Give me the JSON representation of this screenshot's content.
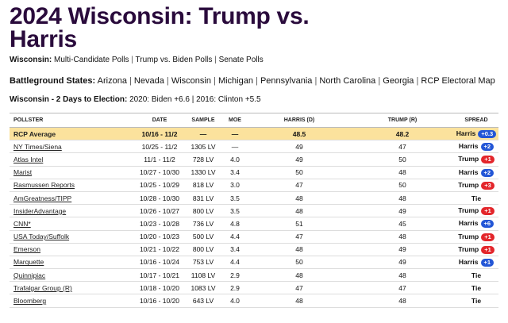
{
  "header": {
    "title": "2024 Wisconsin: Trump vs. Harris"
  },
  "nav": {
    "label": "Wisconsin:",
    "links": [
      "Multi-Candidate Polls",
      "Trump vs. Biden Polls",
      "Senate Polls"
    ]
  },
  "battleground": {
    "label": "Battleground States:",
    "links": [
      "Arizona",
      "Nevada",
      "Wisconsin",
      "Michigan",
      "Pennsylvania",
      "North Carolina",
      "Georgia",
      "RCP Electoral Map"
    ]
  },
  "history": {
    "label": "Wisconsin - 2 Days to Election:",
    "text": "2020: Biden +6.6 | 2016: Clinton +5.5"
  },
  "spread_colors": {
    "Harris": "#2356d6",
    "Trump": "#e3262b"
  },
  "table": {
    "columns": [
      "POLLSTER",
      "DATE",
      "SAMPLE",
      "MOE",
      "HARRIS (D)",
      "TRUMP (R)",
      "SPREAD"
    ],
    "rows": [
      {
        "pollster": "RCP Average",
        "date": "10/16 - 11/2",
        "sample": "—",
        "moe": "—",
        "harris": "48.5",
        "trump": "48.2",
        "leader": "Harris",
        "margin": "+0.3"
      },
      {
        "pollster": "NY Times/Siena",
        "date": "10/25 - 11/2",
        "sample": "1305 LV",
        "moe": "—",
        "harris": "49",
        "trump": "47",
        "leader": "Harris",
        "margin": "+2"
      },
      {
        "pollster": "Atlas Intel",
        "date": "11/1 - 11/2",
        "sample": "728 LV",
        "moe": "4.0",
        "harris": "49",
        "trump": "50",
        "leader": "Trump",
        "margin": "+1"
      },
      {
        "pollster": "Marist",
        "date": "10/27 - 10/30",
        "sample": "1330 LV",
        "moe": "3.4",
        "harris": "50",
        "trump": "48",
        "leader": "Harris",
        "margin": "+2"
      },
      {
        "pollster": "Rasmussen Reports",
        "date": "10/25 - 10/29",
        "sample": "818 LV",
        "moe": "3.0",
        "harris": "47",
        "trump": "50",
        "leader": "Trump",
        "margin": "+3"
      },
      {
        "pollster": "AmGreatness/TIPP",
        "date": "10/28 - 10/30",
        "sample": "831 LV",
        "moe": "3.5",
        "harris": "48",
        "trump": "48",
        "leader": "Tie"
      },
      {
        "pollster": "InsiderAdvantage",
        "date": "10/26 - 10/27",
        "sample": "800 LV",
        "moe": "3.5",
        "harris": "48",
        "trump": "49",
        "leader": "Trump",
        "margin": "+1"
      },
      {
        "pollster": "CNN*",
        "date": "10/23 - 10/28",
        "sample": "736 LV",
        "moe": "4.8",
        "harris": "51",
        "trump": "45",
        "leader": "Harris",
        "margin": "+6"
      },
      {
        "pollster": "USA Today/Suffolk",
        "date": "10/20 - 10/23",
        "sample": "500 LV",
        "moe": "4.4",
        "harris": "47",
        "trump": "48",
        "leader": "Trump",
        "margin": "+1"
      },
      {
        "pollster": "Emerson",
        "date": "10/21 - 10/22",
        "sample": "800 LV",
        "moe": "3.4",
        "harris": "48",
        "trump": "49",
        "leader": "Trump",
        "margin": "+1"
      },
      {
        "pollster": "Marquette",
        "date": "10/16 - 10/24",
        "sample": "753 LV",
        "moe": "4.4",
        "harris": "50",
        "trump": "49",
        "leader": "Harris",
        "margin": "+1"
      },
      {
        "pollster": "Quinnipiac",
        "date": "10/17 - 10/21",
        "sample": "1108 LV",
        "moe": "2.9",
        "harris": "48",
        "trump": "48",
        "leader": "Tie"
      },
      {
        "pollster": "Trafalgar Group (R)",
        "date": "10/18 - 10/20",
        "sample": "1083 LV",
        "moe": "2.9",
        "harris": "47",
        "trump": "47",
        "leader": "Tie"
      },
      {
        "pollster": "Bloomberg",
        "date": "10/16 - 10/20",
        "sample": "643 LV",
        "moe": "4.0",
        "harris": "48",
        "trump": "48",
        "leader": "Tie"
      }
    ]
  }
}
